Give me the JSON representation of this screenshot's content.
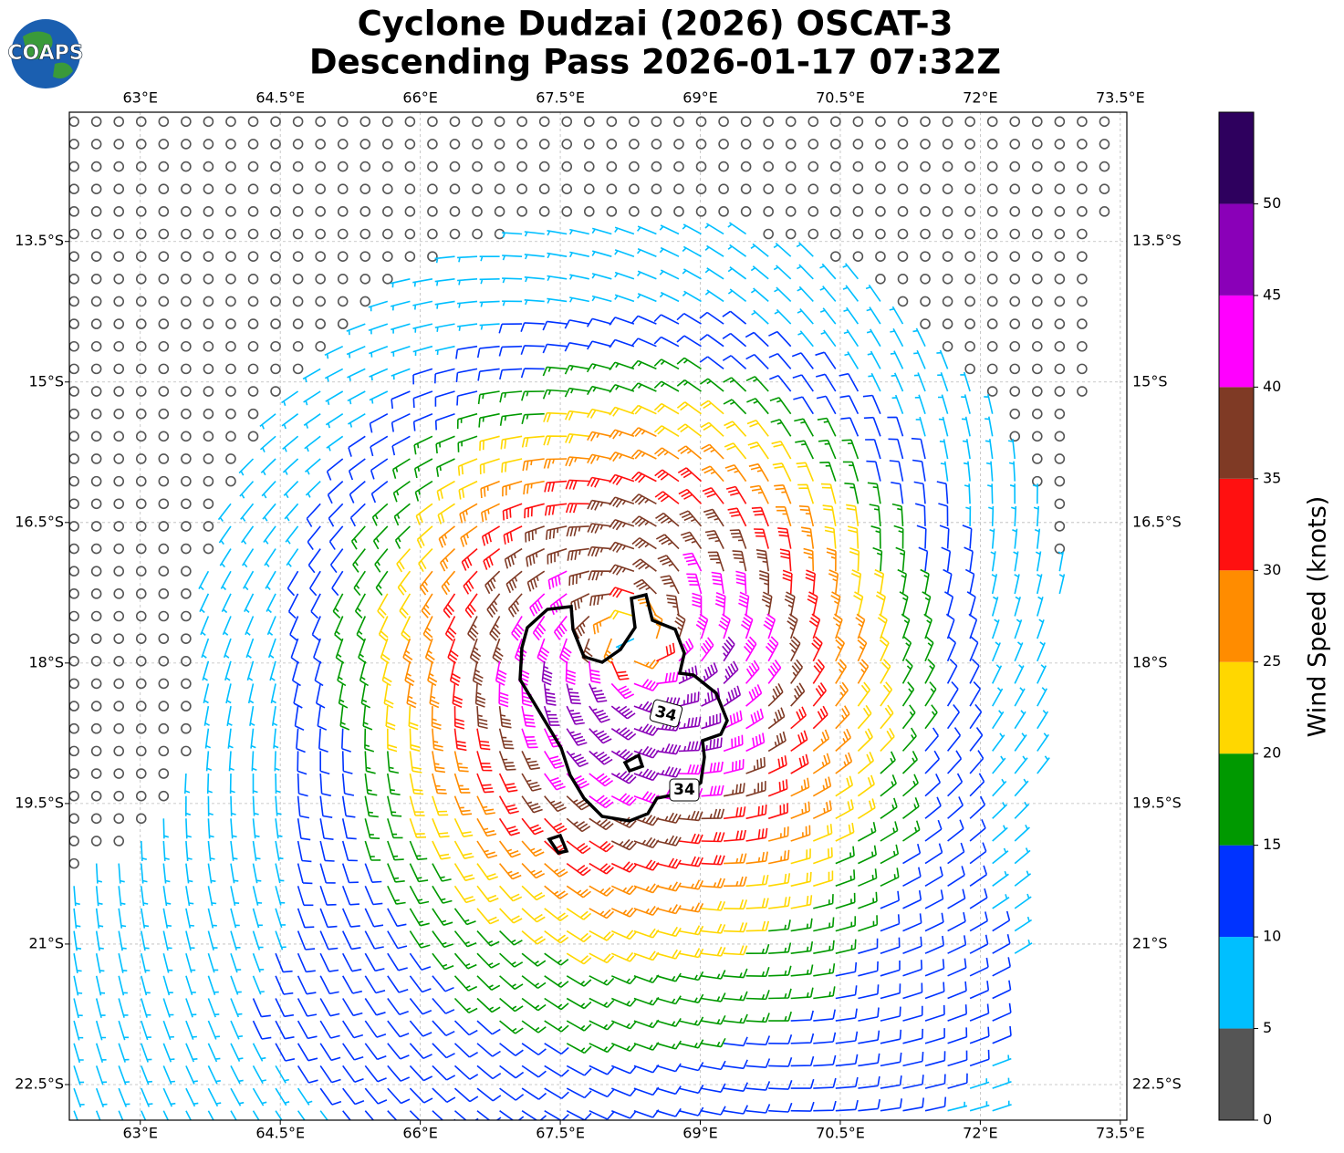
{
  "map": {
    "type": "wind-barbs",
    "title": [
      "Cyclone Dudzai (2026) OSCAT-3",
      "Descending Pass 2026-01-17 07:32Z"
    ],
    "logo": "COAPS",
    "xlim": [
      62.24,
      73.57
    ],
    "ylim": [
      -22.88,
      -12.12
    ],
    "xticks": [
      {
        "value": 63,
        "label": "63°E"
      },
      {
        "value": 64.5,
        "label": "64.5°E"
      },
      {
        "value": 66,
        "label": "66°E"
      },
      {
        "value": 67.5,
        "label": "67.5°E"
      },
      {
        "value": 69,
        "label": "69°E"
      },
      {
        "value": 70.5,
        "label": "70.5°E"
      },
      {
        "value": 72,
        "label": "72°E"
      },
      {
        "value": 73.5,
        "label": "73.5°E"
      }
    ],
    "yticks": [
      {
        "value": -13.5,
        "label": "13.5°S"
      },
      {
        "value": -15,
        "label": "15°S"
      },
      {
        "value": -16.5,
        "label": "16.5°S"
      },
      {
        "value": -18,
        "label": "18°S"
      },
      {
        "value": -19.5,
        "label": "19.5°S"
      },
      {
        "value": -21,
        "label": "21°S"
      },
      {
        "value": -22.5,
        "label": "22.5°S"
      }
    ],
    "grid": true,
    "contour_level": 34,
    "colorbar": {
      "label": "Wind Speed (knots)",
      "lim": [
        0,
        55
      ],
      "ticks": [
        0,
        5,
        10,
        15,
        20,
        25,
        30,
        35,
        40,
        45,
        50
      ],
      "bounds": [
        0,
        5,
        10,
        15,
        20,
        25,
        30,
        35,
        40,
        45,
        50,
        55
      ],
      "colors": [
        "#555555",
        "#00bfff",
        "#0033ff",
        "#009900",
        "#ffd700",
        "#ff8c00",
        "#ff1010",
        "#7f3a25",
        "#ff00ff",
        "#8a00b8",
        "#2e005e"
      ]
    }
  }
}
